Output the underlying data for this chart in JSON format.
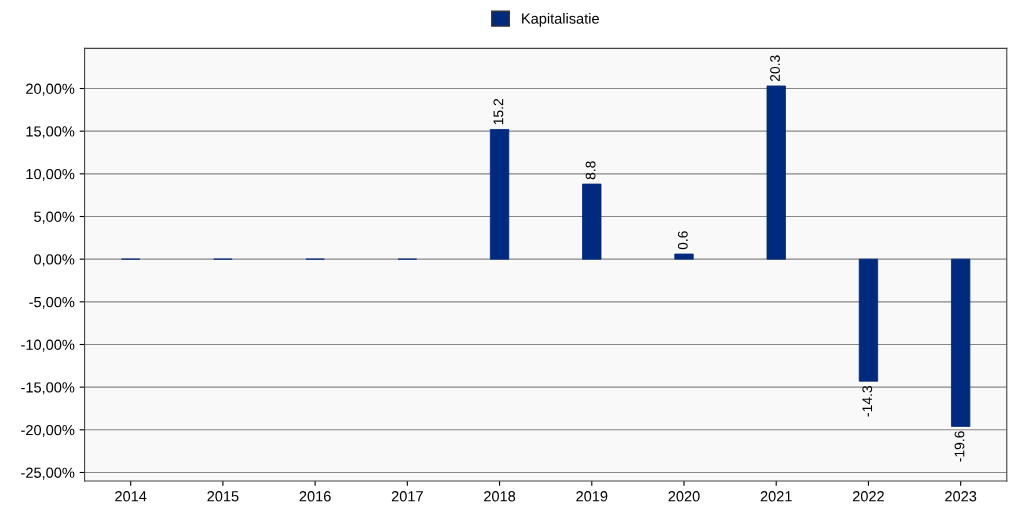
{
  "chart_data": {
    "type": "bar",
    "categories": [
      "2014",
      "2015",
      "2016",
      "2017",
      "2018",
      "2019",
      "2020",
      "2021",
      "2022",
      "2023"
    ],
    "series": [
      {
        "name": "Kapitalisatie",
        "color": "#002a7e",
        "values": [
          0,
          0,
          0,
          0,
          15.2,
          8.8,
          0.6,
          20.3,
          -14.3,
          -19.6
        ],
        "value_labels": [
          null,
          null,
          null,
          null,
          "15.2",
          "8.8",
          "0.6",
          "20.3",
          "-14.3",
          "-19.6"
        ]
      }
    ],
    "ylim": [
      -26,
      24.7
    ],
    "yticks": [
      {
        "value": -25,
        "label": "-25,00%"
      },
      {
        "value": -20,
        "label": "-20,00%"
      },
      {
        "value": -15,
        "label": "-15,00%"
      },
      {
        "value": -10,
        "label": "-10,00%"
      },
      {
        "value": -5,
        "label": "-5,00%"
      },
      {
        "value": 0,
        "label": "0,00%"
      },
      {
        "value": 5,
        "label": "5,00%"
      },
      {
        "value": 10,
        "label": "10,00%"
      },
      {
        "value": 15,
        "label": "15,00%"
      },
      {
        "value": 20,
        "label": "20,00%"
      }
    ],
    "grid": "y",
    "legend": "top"
  }
}
